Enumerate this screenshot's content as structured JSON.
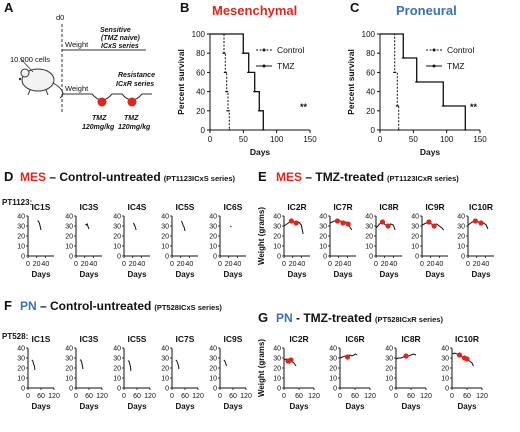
{
  "colors": {
    "mes": "#e0251b",
    "pn": "#3a71b3",
    "dot": "#e0251b",
    "line": "#111111"
  },
  "panel_a": {
    "letter": "A",
    "cells": "10.000 cells",
    "d0": "d0",
    "weight1": "Weight",
    "weight2": "Weight",
    "sensitive": [
      "Sensitive",
      "(TMZ naive)",
      "ICxS series"
    ],
    "resistance": [
      "Resistance",
      "ICxR series"
    ],
    "tmz1": [
      "TMZ",
      "120mg/kg"
    ],
    "tmz2": [
      "TMZ",
      "120mg/kg"
    ]
  },
  "panel_b": {
    "letter": "B",
    "title": "Mesenchymal"
  },
  "panel_c": {
    "letter": "C",
    "title": "Proneural"
  },
  "panel_d": {
    "letter": "D",
    "title_colored": "MES",
    "title_rest": " – Control-untreated",
    "series": "(PT1123ICxS series)",
    "patient": "PT1123:"
  },
  "panel_e": {
    "letter": "E",
    "title_colored": "MES",
    "title_rest": " – TMZ-treated",
    "series": "(PT1123ICxR series)"
  },
  "panel_f": {
    "letter": "F",
    "title_colored": "PN",
    "title_rest": " – Control-untreated",
    "series": "(PT528ICxS series)",
    "patient": "PT528:"
  },
  "panel_g": {
    "letter": "G",
    "title_colored": "PN",
    "title_rest": " - TMZ-treated",
    "series": "(PT528ICxR series)"
  },
  "chart_data": [
    {
      "id": "B",
      "type": "line",
      "title": "Mesenchymal",
      "xlabel": "Days",
      "ylabel": "Percent survival",
      "xlim": [
        0,
        150
      ],
      "ylim": [
        0,
        100
      ],
      "xticks": [
        0,
        50,
        100,
        150
      ],
      "yticks": [
        0,
        20,
        40,
        60,
        80,
        100
      ],
      "significance": "**",
      "series": [
        {
          "name": "Control",
          "style": "dashed",
          "x": [
            0,
            21,
            21,
            23,
            23,
            25,
            25,
            27,
            27,
            29,
            29
          ],
          "y": [
            100,
            100,
            80,
            80,
            60,
            60,
            40,
            40,
            20,
            20,
            0
          ]
        },
        {
          "name": "TMZ",
          "style": "solid",
          "x": [
            0,
            50,
            50,
            58,
            58,
            67,
            67,
            74,
            74,
            80,
            80
          ],
          "y": [
            100,
            100,
            80,
            80,
            60,
            60,
            40,
            40,
            20,
            20,
            0
          ]
        }
      ]
    },
    {
      "id": "C",
      "type": "line",
      "title": "Proneural",
      "xlabel": "Days",
      "ylabel": "Percent survival",
      "xlim": [
        0,
        150
      ],
      "ylim": [
        0,
        100
      ],
      "xticks": [
        0,
        50,
        100,
        150
      ],
      "yticks": [
        0,
        20,
        40,
        60,
        80,
        100
      ],
      "significance": "**",
      "series": [
        {
          "name": "Control",
          "style": "dashed",
          "x": [
            0,
            22,
            22,
            26,
            26,
            28,
            28
          ],
          "y": [
            100,
            100,
            60,
            60,
            25,
            25,
            0
          ]
        },
        {
          "name": "TMZ",
          "style": "solid",
          "x": [
            0,
            35,
            35,
            55,
            55,
            95,
            95,
            128,
            128
          ],
          "y": [
            100,
            100,
            75,
            75,
            50,
            50,
            25,
            25,
            0
          ]
        }
      ]
    },
    {
      "id": "D",
      "type": "line",
      "ylabel": "Weight (grams)",
      "xlabel": "Days",
      "xlim": [
        0,
        60
      ],
      "ylim": [
        0,
        40
      ],
      "xticks": [
        0,
        20,
        40
      ],
      "yticks": [
        0,
        10,
        20,
        30,
        40
      ],
      "panels": [
        {
          "label": "IC1S",
          "x": [
            22,
            24,
            26,
            28,
            30
          ],
          "y": [
            35,
            35,
            33,
            30,
            26
          ],
          "dots": []
        },
        {
          "label": "IC3S",
          "x": [
            22,
            24,
            26,
            28,
            30
          ],
          "y": [
            32,
            31,
            32,
            29,
            27
          ],
          "dots": []
        },
        {
          "label": "IC4S",
          "x": [
            22,
            24,
            26,
            28
          ],
          "y": [
            33,
            31,
            29,
            26
          ],
          "dots": []
        },
        {
          "label": "IC5S",
          "x": [
            22,
            24,
            26,
            28,
            30
          ],
          "y": [
            35,
            33,
            30,
            29,
            25
          ],
          "dots": []
        },
        {
          "label": "IC6S",
          "x": [
            24,
            26
          ],
          "y": [
            30,
            29
          ],
          "dots": []
        }
      ]
    },
    {
      "id": "E",
      "type": "line",
      "ylabel": "Weight (grams)",
      "xlabel": "Days",
      "xlim": [
        0,
        60
      ],
      "ylim": [
        0,
        40
      ],
      "xticks": [
        0,
        20,
        40
      ],
      "yticks": [
        0,
        10,
        20,
        30,
        40
      ],
      "panels": [
        {
          "label": "IC2R",
          "x": [
            0,
            10,
            17,
            22,
            28,
            34,
            40,
            44
          ],
          "y": [
            30,
            33,
            35,
            34,
            33,
            34,
            31,
            22
          ],
          "dots": [
            [
              17,
              35
            ],
            [
              28,
              33
            ]
          ]
        },
        {
          "label": "IC7R",
          "x": [
            0,
            10,
            17,
            24,
            30,
            36,
            42,
            46,
            50
          ],
          "y": [
            33,
            35,
            35,
            35,
            33,
            34,
            32,
            29,
            26
          ],
          "dots": [
            [
              17,
              35
            ],
            [
              30,
              33
            ],
            [
              42,
              32
            ]
          ]
        },
        {
          "label": "IC8R",
          "x": [
            0,
            8,
            15,
            22,
            28,
            34,
            40,
            44
          ],
          "y": [
            28,
            32,
            34,
            31,
            30,
            32,
            31,
            26
          ],
          "dots": [
            [
              15,
              34
            ],
            [
              28,
              30
            ]
          ]
        },
        {
          "label": "IC9R",
          "x": [
            0,
            10,
            16,
            22,
            28,
            34,
            40,
            46,
            50
          ],
          "y": [
            31,
            33,
            34,
            32,
            30,
            32,
            30,
            28,
            26
          ],
          "dots": [
            [
              16,
              34
            ],
            [
              28,
              30
            ]
          ]
        },
        {
          "label": "IC10R",
          "x": [
            0,
            10,
            17,
            24,
            30,
            36,
            42,
            46
          ],
          "y": [
            31,
            34,
            35,
            34,
            33,
            33,
            31,
            27
          ],
          "dots": [
            [
              17,
              35
            ],
            [
              30,
              33
            ]
          ]
        }
      ]
    },
    {
      "id": "F",
      "type": "line",
      "ylabel": "Weight (grams)",
      "xlabel": "Days",
      "xlim": [
        0,
        120
      ],
      "ylim": [
        0,
        40
      ],
      "xticks": [
        0,
        60,
        120
      ],
      "yticks": [
        0,
        10,
        20,
        30,
        40
      ],
      "panels": [
        {
          "label": "IC1S",
          "x": [
            18,
            22,
            26,
            30,
            32
          ],
          "y": [
            28,
            27,
            24,
            22,
            18
          ],
          "dots": []
        },
        {
          "label": "IC3S",
          "x": [
            18,
            22,
            26,
            30,
            32
          ],
          "y": [
            28,
            28,
            26,
            22,
            19
          ],
          "dots": []
        },
        {
          "label": "IC5S",
          "x": [
            18,
            22,
            26,
            30,
            32
          ],
          "y": [
            27,
            27,
            25,
            21,
            17
          ],
          "dots": []
        },
        {
          "label": "IC7S",
          "x": [
            18,
            22,
            26,
            30,
            32
          ],
          "y": [
            28,
            27,
            25,
            22,
            19
          ],
          "dots": []
        },
        {
          "label": "IC9S",
          "x": [
            18,
            22,
            26,
            30
          ],
          "y": [
            28,
            27,
            25,
            22
          ],
          "dots": []
        }
      ]
    },
    {
      "id": "G",
      "type": "line",
      "ylabel": "Weight (grams)",
      "xlabel": "Days",
      "xlim": [
        0,
        120
      ],
      "ylim": [
        0,
        40
      ],
      "xticks": [
        0,
        60,
        120
      ],
      "yticks": [
        0,
        10,
        20,
        30,
        40
      ],
      "panels": [
        {
          "label": "IC2R",
          "x": [
            0,
            8,
            16,
            22,
            28,
            34,
            40,
            48
          ],
          "y": [
            28,
            29,
            27,
            25,
            28,
            26,
            25,
            22
          ],
          "dots": [
            [
              16,
              27
            ],
            [
              28,
              28
            ]
          ]
        },
        {
          "label": "IC6R",
          "x": [
            0,
            10,
            20,
            30,
            40,
            48,
            56,
            62,
            68
          ],
          "y": [
            30,
            31,
            32,
            31,
            33,
            32,
            33,
            34,
            33
          ],
          "dots": [
            [
              30,
              31
            ]
          ]
        },
        {
          "label": "IC8R",
          "x": [
            0,
            10,
            20,
            30,
            40,
            50,
            60,
            70,
            80
          ],
          "y": [
            29,
            30,
            30,
            31,
            32,
            32,
            33,
            34,
            33
          ],
          "dots": [
            [
              40,
              32
            ]
          ]
        },
        {
          "label": "IC10R",
          "x": [
            0,
            10,
            20,
            30,
            40,
            50,
            60,
            70,
            80,
            86
          ],
          "y": [
            34,
            35,
            34,
            33,
            31,
            30,
            29,
            27,
            25,
            22
          ],
          "dots": [
            [
              30,
              33
            ],
            [
              50,
              30
            ],
            [
              60,
              29
            ]
          ]
        }
      ]
    }
  ]
}
